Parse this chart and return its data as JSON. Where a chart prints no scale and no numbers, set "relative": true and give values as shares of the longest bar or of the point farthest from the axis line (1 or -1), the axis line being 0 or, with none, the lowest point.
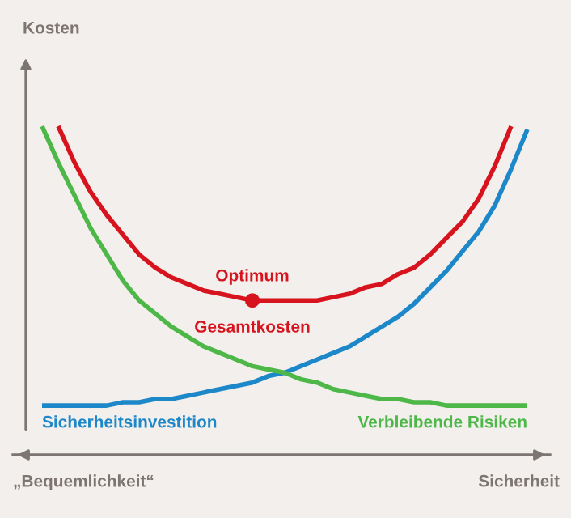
{
  "chart_data": {
    "type": "line",
    "relative": true,
    "xlabel": "Sicherheit",
    "legend": false,
    "grid": false,
    "marker": "none",
    "line_style": "solid",
    "categories": [
      null,
      null,
      null,
      null,
      null,
      null,
      null,
      null,
      null,
      null,
      null,
      null,
      null,
      null,
      null,
      null,
      null,
      null,
      null,
      null,
      null,
      null,
      null,
      null,
      null,
      null,
      null,
      null,
      null,
      null,
      null
    ],
    "series": [
      {
        "name": "Sicherheitsinvestition",
        "color": "#1d88c9",
        "values": [
          0.15,
          0.15,
          0.15,
          0.15,
          0.15,
          0.16,
          0.16,
          0.17,
          0.17,
          0.18,
          0.19,
          0.2,
          0.21,
          0.22,
          0.24,
          0.25,
          0.27,
          0.29,
          0.31,
          0.33,
          0.36,
          0.39,
          0.42,
          0.46,
          0.51,
          0.56,
          0.62,
          0.68,
          0.76,
          0.87,
          0.99
        ]
      },
      {
        "name": "Verbleibende Risiken",
        "color": "#4db748",
        "values": [
          1.0,
          0.89,
          0.79,
          0.69,
          0.61,
          0.53,
          0.47,
          0.43,
          0.39,
          0.36,
          0.33,
          0.31,
          0.29,
          0.27,
          0.26,
          0.25,
          0.23,
          0.22,
          0.2,
          0.19,
          0.18,
          0.17,
          0.17,
          0.16,
          0.16,
          0.15,
          0.15,
          0.15,
          0.15,
          0.15,
          0.15
        ]
      },
      {
        "name": "Gesamtkosten",
        "color": "#d7141e",
        "values": [
          null,
          1.0,
          0.89,
          0.8,
          0.73,
          0.67,
          0.61,
          0.57,
          0.54,
          0.52,
          0.5,
          0.49,
          0.48,
          0.47,
          0.47,
          0.47,
          0.47,
          0.47,
          0.48,
          0.49,
          0.51,
          0.52,
          0.55,
          0.57,
          0.61,
          0.66,
          0.71,
          0.78,
          0.88,
          1.0,
          null
        ]
      }
    ],
    "annotations": [
      "„Bequemlichkeit“",
      {
        "text": "Optimum",
        "y": 0.47
      },
      "Kosten"
    ]
  }
}
